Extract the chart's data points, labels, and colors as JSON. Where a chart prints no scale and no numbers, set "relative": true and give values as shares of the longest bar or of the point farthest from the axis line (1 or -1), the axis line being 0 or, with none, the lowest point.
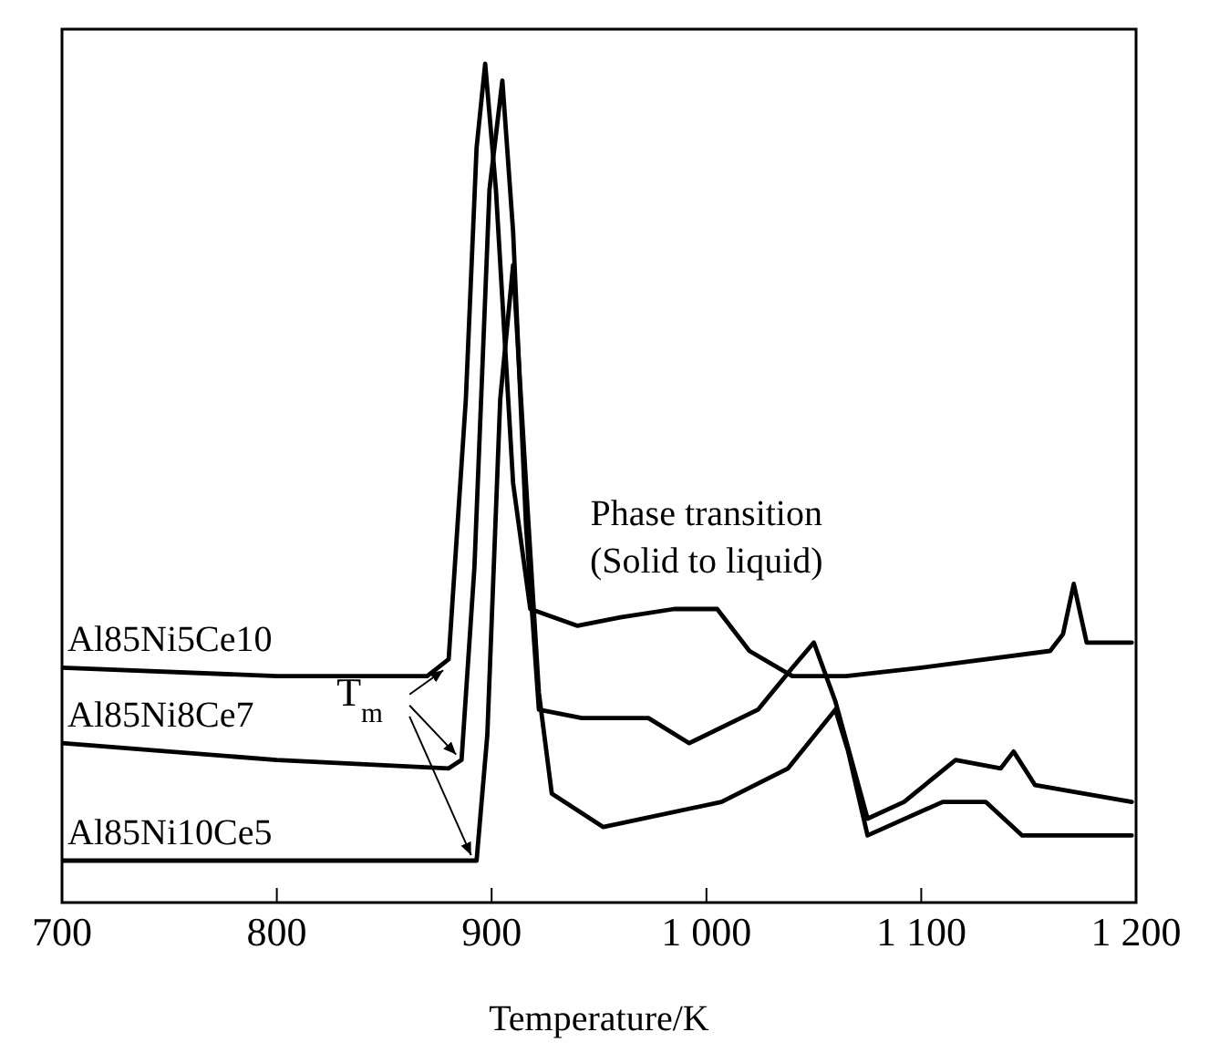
{
  "chart_data": {
    "type": "line",
    "relative": true,
    "xlabel": "Temperature/K",
    "xlim": [
      700,
      1200
    ],
    "xticks": [
      700,
      800,
      900,
      {
        "value": 1000,
        "label": "1 000"
      },
      {
        "value": 1100,
        "label": "1 100"
      },
      {
        "value": 1200,
        "label": "1 200"
      }
    ],
    "series": [
      {
        "name": "Al85Ni5Ce10",
        "color": "#000000",
        "x": [
          700,
          800,
          870,
          880,
          888,
          893,
          897,
          902,
          910,
          918,
          940,
          960,
          985,
          1005,
          1020,
          1040,
          1051,
          1065,
          1100,
          1160,
          1166,
          1171,
          1177,
          1198
        ],
        "values": [
          0.28,
          0.27,
          0.27,
          0.29,
          0.6,
          0.9,
          1,
          0.85,
          0.5,
          0.35,
          0.33,
          0.34,
          0.35,
          0.35,
          0.3,
          0.27,
          0.27,
          0.27,
          0.28,
          0.3,
          0.32,
          0.38,
          0.31,
          0.31
        ]
      },
      {
        "name": "Al85Ni8Ce7",
        "color": "#000000",
        "x": [
          700,
          800,
          880,
          886,
          892,
          899,
          905,
          910,
          916,
          922,
          942,
          973,
          992,
          1024,
          1040,
          1050,
          1060,
          1075,
          1092,
          1116,
          1137,
          1143,
          1153,
          1198
        ],
        "values": [
          0.19,
          0.17,
          0.16,
          0.17,
          0.4,
          0.85,
          0.98,
          0.8,
          0.45,
          0.23,
          0.22,
          0.22,
          0.19,
          0.23,
          0.28,
          0.31,
          0.24,
          0.1,
          0.12,
          0.17,
          0.16,
          0.18,
          0.14,
          0.12
        ]
      },
      {
        "name": "Al85Ni10Ce5",
        "color": "#000000",
        "x": [
          700,
          800,
          893,
          898,
          904,
          910,
          916,
          922,
          928,
          952,
          1007,
          1038,
          1060,
          1066,
          1075,
          1110,
          1130,
          1147,
          1198
        ],
        "values": [
          0.05,
          0.05,
          0.05,
          0.2,
          0.6,
          0.76,
          0.5,
          0.25,
          0.13,
          0.09,
          0.12,
          0.16,
          0.23,
          0.18,
          0.08,
          0.12,
          0.12,
          0.08,
          0.08
        ]
      }
    ],
    "annotations": [
      "Phase transition\n(Solid to liquid)",
      "T$_{m}$"
    ],
    "legend": false,
    "marker": "none",
    "line_style": "solid"
  }
}
